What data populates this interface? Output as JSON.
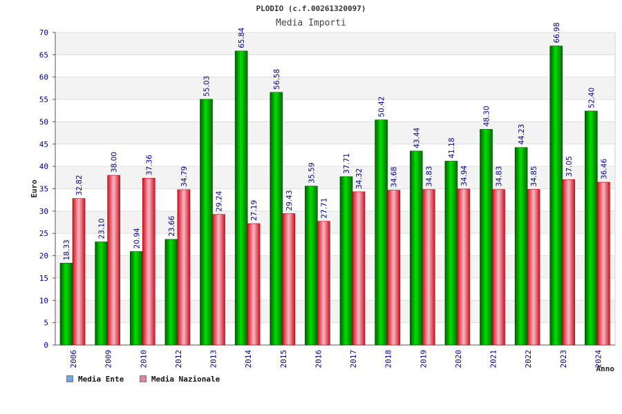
{
  "chart_data": {
    "type": "bar",
    "title": "PLODIO (c.f.00261320097)",
    "subtitle": "Media Importi",
    "xlabel": "Anno",
    "ylabel": "Euro",
    "ylim": [
      0,
      70
    ],
    "y_ticks": [
      "0",
      "5",
      "10",
      "15",
      "20",
      "25",
      "30",
      "35",
      "40",
      "45",
      "50",
      "55",
      "60",
      "65",
      "70"
    ],
    "categories": [
      "2006",
      "2009",
      "2010",
      "2012",
      "2013",
      "2014",
      "2015",
      "2016",
      "2017",
      "2018",
      "2019",
      "2020",
      "2021",
      "2022",
      "2023",
      "2024"
    ],
    "series": [
      {
        "name": "Media Ente",
        "color": "#00a000",
        "legend_color": "#6fa8e8",
        "values": [
          18.33,
          23.1,
          20.94,
          23.66,
          55.03,
          65.84,
          56.58,
          35.59,
          37.71,
          50.42,
          43.44,
          41.18,
          48.3,
          44.23,
          66.98,
          52.4
        ],
        "labels": [
          "18.33",
          "23.10",
          "20.94",
          "23.66",
          "55.03",
          "65.84",
          "56.58",
          "35.59",
          "37.71",
          "50.42",
          "43.44",
          "41.18",
          "48.30",
          "44.23",
          "66.98",
          "52.40"
        ]
      },
      {
        "name": "Media Nazionale",
        "color": "#e8202e",
        "legend_color": "#e87fa8",
        "values": [
          32.82,
          38.0,
          37.36,
          34.79,
          29.24,
          27.19,
          29.43,
          27.71,
          34.32,
          34.68,
          34.83,
          34.94,
          34.83,
          34.85,
          37.05,
          36.46
        ],
        "labels": [
          "32.82",
          "38.00",
          "37.36",
          "34.79",
          "29.24",
          "27.19",
          "29.43",
          "27.71",
          "34.32",
          "34.68",
          "34.83",
          "34.94",
          "34.83",
          "34.85",
          "37.05",
          "36.46"
        ]
      }
    ],
    "grid": true,
    "legend_position": "bottom-left"
  }
}
